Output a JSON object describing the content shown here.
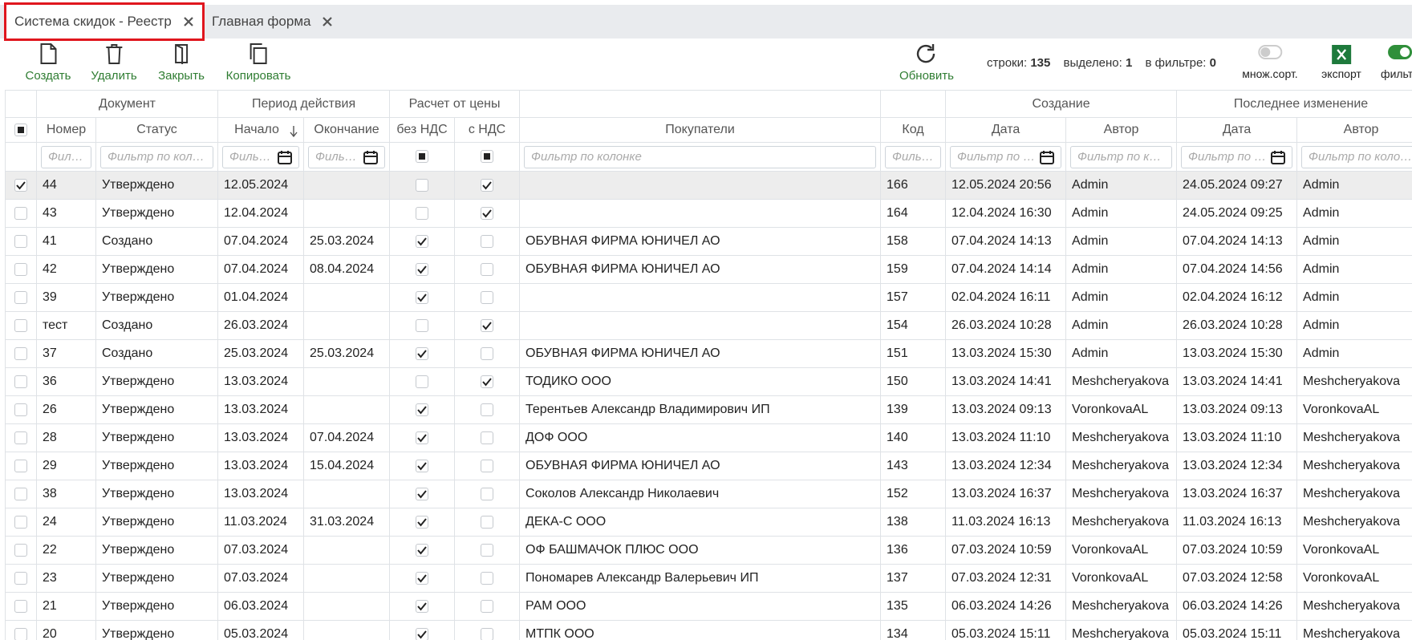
{
  "tabs": [
    {
      "label": "Система скидок - Реестр",
      "active": true
    },
    {
      "label": "Главная форма",
      "active": false
    }
  ],
  "toolbar": {
    "buttons": [
      "Создать",
      "Удалить",
      "Закрыть",
      "Копировать"
    ],
    "refresh": "Обновить",
    "stats": {
      "rows_label": "строки:",
      "rows": 135,
      "selected_label": "выделено:",
      "selected": 1,
      "filtered_label": "в фильтре:",
      "filtered": 0
    },
    "multi_sort": {
      "label": "множ.сорт.",
      "on": false
    },
    "export": "экспорт",
    "filter": {
      "label": "фильтр",
      "on": true
    }
  },
  "table": {
    "groups": [
      "Документ",
      "Период действия",
      "Расчет от цены",
      "Создание",
      "Последнее изменение"
    ],
    "columns": [
      "Номер",
      "Статус",
      "Начало",
      "Окончание",
      "без НДС",
      "с НДС",
      "Покупатели",
      "Код",
      "Дата",
      "Автор",
      "Дата",
      "Автор"
    ],
    "filter_placeholder": "Фильтр по колонке",
    "rows": [
      {
        "selected": true,
        "number": "44",
        "status": "Утверждено",
        "start": "12.05.2024",
        "end": null,
        "no_vat": false,
        "with_vat": true,
        "buyers": null,
        "code": 166,
        "created_date": "12.05.2024 20:56",
        "created_author": "Admin",
        "modified_date": "24.05.2024 09:27",
        "modified_author": "Admin"
      },
      {
        "selected": false,
        "number": "43",
        "status": "Утверждено",
        "start": "12.04.2024",
        "end": null,
        "no_vat": false,
        "with_vat": true,
        "buyers": null,
        "code": 164,
        "created_date": "12.04.2024 16:30",
        "created_author": "Admin",
        "modified_date": "24.05.2024 09:25",
        "modified_author": "Admin"
      },
      {
        "selected": false,
        "number": "41",
        "status": "Создано",
        "start": "07.04.2024",
        "end": "25.03.2024",
        "no_vat": true,
        "with_vat": false,
        "buyers": "ОБУВНАЯ ФИРМА ЮНИЧЕЛ АО",
        "code": 158,
        "created_date": "07.04.2024 14:13",
        "created_author": "Admin",
        "modified_date": "07.04.2024 14:13",
        "modified_author": "Admin"
      },
      {
        "selected": false,
        "number": "42",
        "status": "Утверждено",
        "start": "07.04.2024",
        "end": "08.04.2024",
        "no_vat": true,
        "with_vat": false,
        "buyers": "ОБУВНАЯ ФИРМА ЮНИЧЕЛ АО",
        "code": 159,
        "created_date": "07.04.2024 14:14",
        "created_author": "Admin",
        "modified_date": "07.04.2024 14:56",
        "modified_author": "Admin"
      },
      {
        "selected": false,
        "number": "39",
        "status": "Утверждено",
        "start": "01.04.2024",
        "end": null,
        "no_vat": true,
        "with_vat": false,
        "buyers": null,
        "code": 157,
        "created_date": "02.04.2024 16:11",
        "created_author": "Admin",
        "modified_date": "02.04.2024 16:12",
        "modified_author": "Admin"
      },
      {
        "selected": false,
        "number": "тест",
        "status": "Создано",
        "start": "26.03.2024",
        "end": null,
        "no_vat": false,
        "with_vat": true,
        "buyers": null,
        "code": 154,
        "created_date": "26.03.2024 10:28",
        "created_author": "Admin",
        "modified_date": "26.03.2024 10:28",
        "modified_author": "Admin"
      },
      {
        "selected": false,
        "number": "37",
        "status": "Создано",
        "start": "25.03.2024",
        "end": "25.03.2024",
        "no_vat": true,
        "with_vat": false,
        "buyers": "ОБУВНАЯ ФИРМА ЮНИЧЕЛ АО",
        "code": 151,
        "created_date": "13.03.2024 15:30",
        "created_author": "Admin",
        "modified_date": "13.03.2024 15:30",
        "modified_author": "Admin"
      },
      {
        "selected": false,
        "number": "36",
        "status": "Утверждено",
        "start": "13.03.2024",
        "end": null,
        "no_vat": false,
        "with_vat": true,
        "buyers": "ТОДИКО ООО",
        "code": 150,
        "created_date": "13.03.2024 14:41",
        "created_author": "Meshcheryakova",
        "modified_date": "13.03.2024 14:41",
        "modified_author": "Meshcheryakova"
      },
      {
        "selected": false,
        "number": "26",
        "status": "Утверждено",
        "start": "13.03.2024",
        "end": null,
        "no_vat": true,
        "with_vat": false,
        "buyers": "Терентьев Александр Владимирович ИП",
        "code": 139,
        "created_date": "13.03.2024 09:13",
        "created_author": "VoronkovaAL",
        "modified_date": "13.03.2024 09:13",
        "modified_author": "VoronkovaAL"
      },
      {
        "selected": false,
        "number": "28",
        "status": "Утверждено",
        "start": "13.03.2024",
        "end": "07.04.2024",
        "no_vat": true,
        "with_vat": false,
        "buyers": "ДОФ ООО",
        "code": 140,
        "created_date": "13.03.2024 11:10",
        "created_author": "Meshcheryakova",
        "modified_date": "13.03.2024 11:10",
        "modified_author": "Meshcheryakova"
      },
      {
        "selected": false,
        "number": "29",
        "status": "Утверждено",
        "start": "13.03.2024",
        "end": "15.04.2024",
        "no_vat": true,
        "with_vat": false,
        "buyers": "ОБУВНАЯ ФИРМА ЮНИЧЕЛ АО",
        "code": 143,
        "created_date": "13.03.2024 12:34",
        "created_author": "Meshcheryakova",
        "modified_date": "13.03.2024 12:34",
        "modified_author": "Meshcheryakova"
      },
      {
        "selected": false,
        "number": "38",
        "status": "Утверждено",
        "start": "13.03.2024",
        "end": null,
        "no_vat": true,
        "with_vat": false,
        "buyers": "Соколов Александр Николаевич",
        "code": 152,
        "created_date": "13.03.2024 16:37",
        "created_author": "Meshcheryakova",
        "modified_date": "13.03.2024 16:37",
        "modified_author": "Meshcheryakova"
      },
      {
        "selected": false,
        "number": "24",
        "status": "Утверждено",
        "start": "11.03.2024",
        "end": "31.03.2024",
        "no_vat": true,
        "with_vat": false,
        "buyers": "ДЕКА-С ООО",
        "code": 138,
        "created_date": "11.03.2024 16:13",
        "created_author": "Meshcheryakova",
        "modified_date": "11.03.2024 16:13",
        "modified_author": "Meshcheryakova"
      },
      {
        "selected": false,
        "number": "22",
        "status": "Утверждено",
        "start": "07.03.2024",
        "end": null,
        "no_vat": true,
        "with_vat": false,
        "buyers": "ОФ БАШМАЧОК ПЛЮС ООО",
        "code": 136,
        "created_date": "07.03.2024 10:59",
        "created_author": "VoronkovaAL",
        "modified_date": "07.03.2024 10:59",
        "modified_author": "VoronkovaAL"
      },
      {
        "selected": false,
        "number": "23",
        "status": "Утверждено",
        "start": "07.03.2024",
        "end": null,
        "no_vat": true,
        "with_vat": false,
        "buyers": "Пономарев Александр Валерьевич ИП",
        "code": 137,
        "created_date": "07.03.2024 12:31",
        "created_author": "VoronkovaAL",
        "modified_date": "07.03.2024 12:58",
        "modified_author": "VoronkovaAL"
      },
      {
        "selected": false,
        "number": "21",
        "status": "Утверждено",
        "start": "06.03.2024",
        "end": null,
        "no_vat": true,
        "with_vat": false,
        "buyers": "РАМ ООО",
        "code": 135,
        "created_date": "06.03.2024 14:26",
        "created_author": "Meshcheryakova",
        "modified_date": "06.03.2024 14:26",
        "modified_author": "Meshcheryakova"
      },
      {
        "selected": false,
        "number": "20",
        "status": "Утверждено",
        "start": "05.03.2024",
        "end": null,
        "no_vat": true,
        "with_vat": false,
        "buyers": "МТПК ООО",
        "code": 134,
        "created_date": "05.03.2024 15:11",
        "created_author": "Meshcheryakova",
        "modified_date": "05.03.2024 15:11",
        "modified_author": "Meshcheryakova"
      }
    ]
  }
}
